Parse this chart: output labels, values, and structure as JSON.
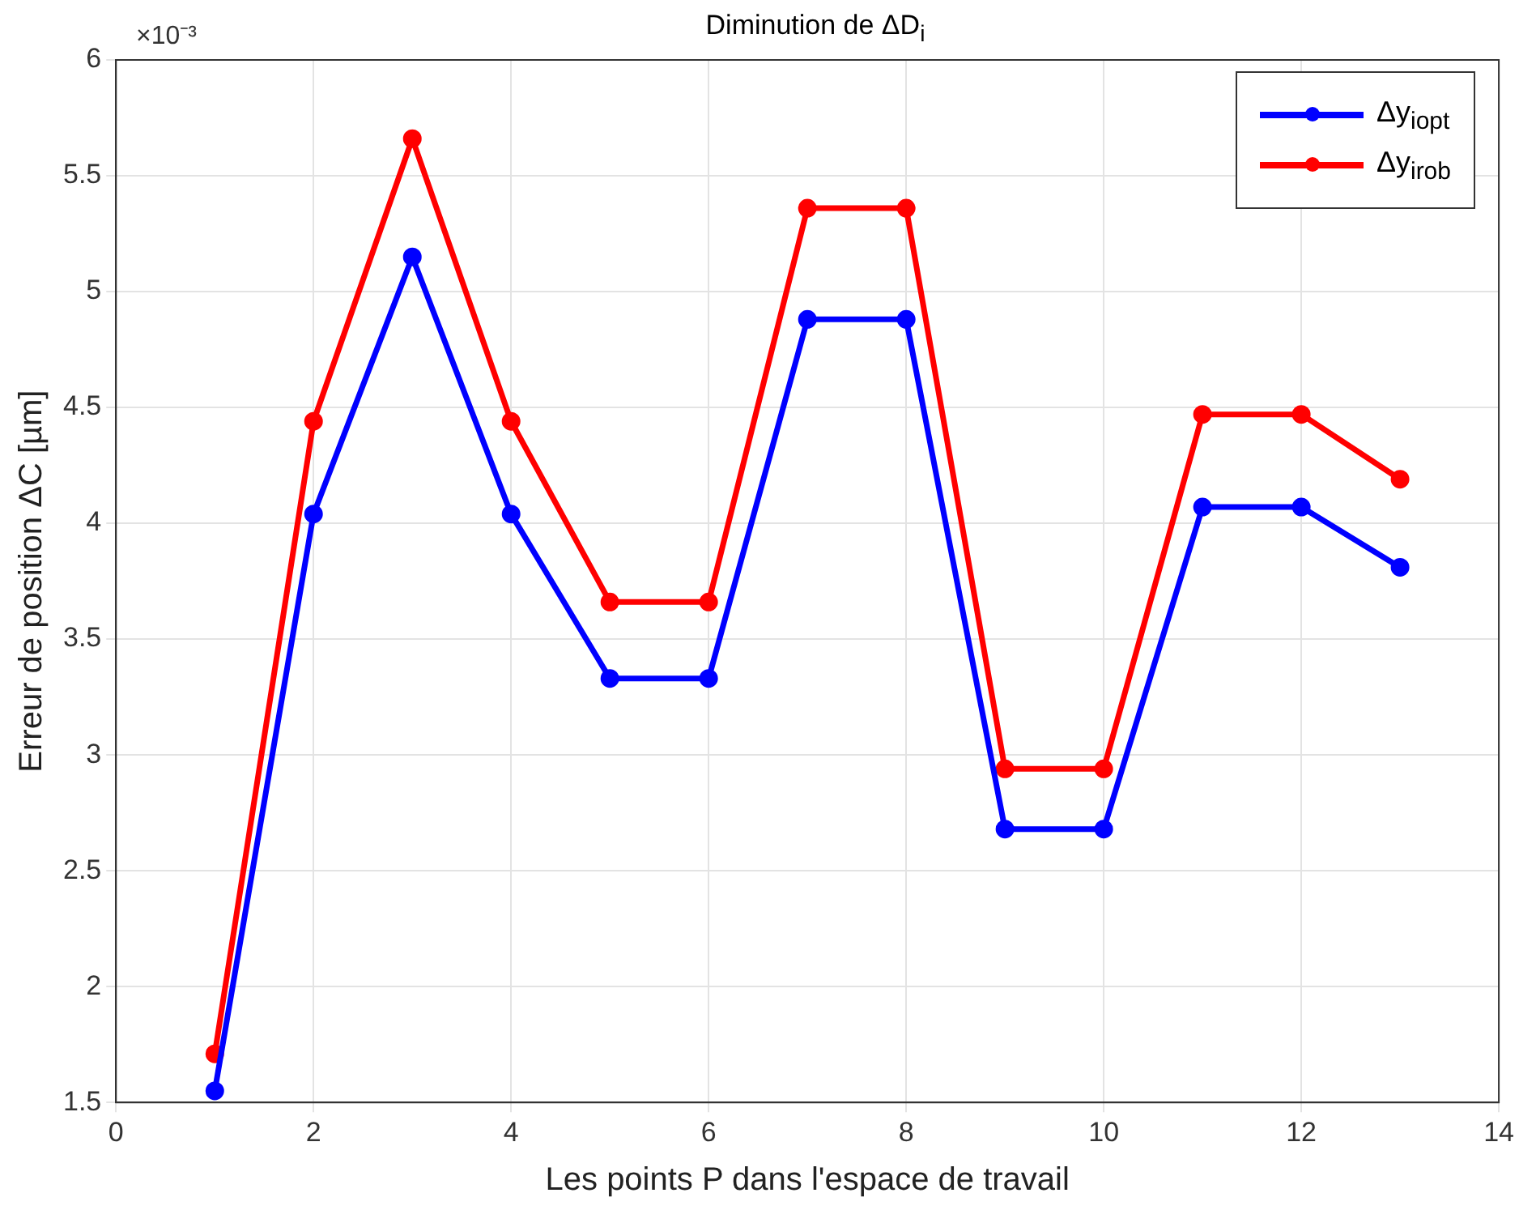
{
  "chart_data": {
    "type": "line",
    "title": "Diminution de ΔD$_{i}$",
    "xlabel": "Les points P dans l'espace de travail",
    "ylabel": "Erreur de position ΔC [µm]",
    "annotations": [
      "×10⁻³"
    ],
    "x": [
      1,
      2,
      3,
      4,
      5,
      6,
      7,
      8,
      9,
      10,
      11,
      12,
      13
    ],
    "series": [
      {
        "name": "Δy$_{iopt}$",
        "color": "#0000ff",
        "values": [
          1.55,
          4.04,
          5.15,
          4.04,
          3.33,
          3.33,
          4.88,
          4.88,
          2.68,
          2.68,
          4.07,
          4.07,
          3.81
        ]
      },
      {
        "name": "Δy$_{irob}$",
        "color": "#ff0000",
        "values": [
          1.71,
          4.44,
          5.66,
          4.44,
          3.66,
          3.66,
          5.36,
          5.36,
          2.94,
          2.94,
          4.47,
          4.47,
          4.19
        ]
      }
    ],
    "xlim": [
      0,
      14
    ],
    "xticks": [
      0,
      2,
      4,
      6,
      8,
      10,
      12,
      14
    ],
    "ylim": [
      1.5,
      6
    ],
    "yticks": [
      1.5,
      2,
      2.5,
      3,
      3.5,
      4,
      4.5,
      5,
      5.5,
      6
    ],
    "grid": true,
    "legend": "top right",
    "marker": "circle",
    "line_style": "solid"
  }
}
